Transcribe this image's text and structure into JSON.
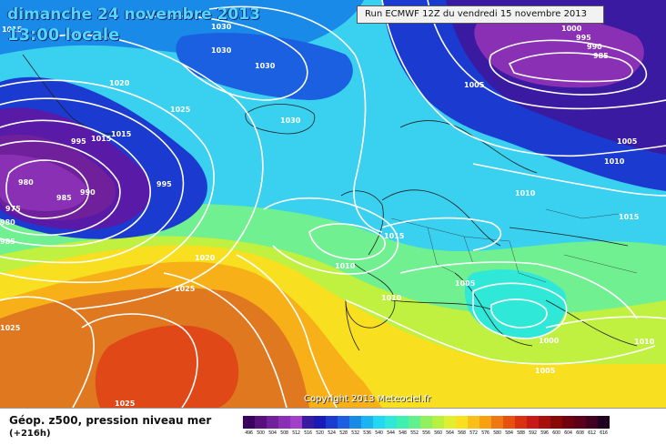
{
  "header": {
    "date_line": "dimanche 24 novembre 2013",
    "time_line": "13:00 locale",
    "run_info": "Run ECMWF 12Z du vendredi 15 novembre 2013"
  },
  "map": {
    "pressure_labels": [
      "1015",
      "1030",
      "1030",
      "1030",
      "1020",
      "1025",
      "1015",
      "1030",
      "995",
      "1015",
      "985",
      "990",
      "995",
      "980",
      "975",
      "980",
      "985",
      "1005",
      "1000",
      "995",
      "990",
      "985",
      "1005",
      "1010",
      "1015",
      "1010",
      "1015",
      "1010",
      "1005",
      "1010",
      "1000",
      "1005",
      "1010",
      "1020",
      "1025",
      "1025",
      "1025"
    ],
    "copyright": "Copyright 2013 Meteociel.fr"
  },
  "legend": {
    "caption": "Géop. z500, pression niveau mer",
    "subcaption": "(+216h)",
    "colorbar": {
      "labels": [
        "496",
        "500",
        "504",
        "508",
        "512",
        "516",
        "520",
        "524",
        "528",
        "532",
        "536",
        "540",
        "544",
        "548",
        "552",
        "556",
        "560",
        "564",
        "568",
        "572",
        "576",
        "580",
        "584",
        "588",
        "592",
        "596",
        "600",
        "604",
        "608",
        "612",
        "616"
      ],
      "colors": [
        "#3a0060",
        "#58107c",
        "#70209a",
        "#8a30b4",
        "#a040c8",
        "#3a1aa0",
        "#1a1ab8",
        "#1a3ad0",
        "#1a60e0",
        "#1a8ae8",
        "#1ab4f0",
        "#20d8f0",
        "#30e8d8",
        "#40f0b0",
        "#60f090",
        "#90f060",
        "#b8f040",
        "#e0f030",
        "#f8e020",
        "#f8c018",
        "#f8a010",
        "#f07810",
        "#e85010",
        "#d83010",
        "#c81818",
        "#a81010",
        "#880808",
        "#700010",
        "#5a0018",
        "#400020",
        "#200020"
      ]
    }
  }
}
